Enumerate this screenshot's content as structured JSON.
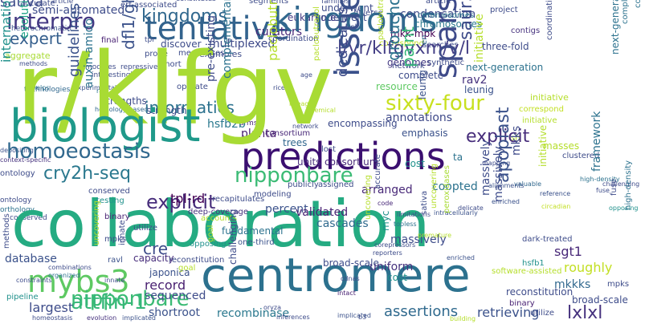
{
  "words": [
    {
      "text": "r/klfgv",
      "color": "#a8db34"
    },
    {
      "text": "collaboration",
      "color": "#25ab82"
    },
    {
      "text": "biologist",
      "color": "#1f998a"
    },
    {
      "text": "centromere",
      "color": "#2c718e"
    },
    {
      "text": "issue",
      "color": "#3b518b"
    },
    {
      "text": "predictions",
      "color": "#3b0f70"
    },
    {
      "text": "kingdoms",
      "color": "#31688e"
    },
    {
      "text": "tentative",
      "color": "#33638d"
    },
    {
      "text": "sparsely",
      "color": "#3e4a89"
    },
    {
      "text": "mybs3",
      "color": "#5ec962"
    },
    {
      "text": "interpro",
      "color": "#443983"
    },
    {
      "text": "homoeostasis",
      "color": "#31688e"
    },
    {
      "text": "nipponbare",
      "color": "#3bbb75"
    },
    {
      "text": "attfin-1",
      "color": "#35b779"
    },
    {
      "text": "sixty-four",
      "color": "#c8e020"
    },
    {
      "text": "cry2h-seq",
      "color": "#2a788e"
    },
    {
      "text": "l/vr/klfgvxm/v/l",
      "color": "#433e85"
    },
    {
      "text": "saur36",
      "color": "#3e4c8a"
    },
    {
      "text": "paint",
      "color": "#35b779"
    },
    {
      "text": "lxlxl",
      "color": "#46327e"
    },
    {
      "text": "apoplast",
      "color": "#3b528b"
    },
    {
      "text": "informatics",
      "color": "#2c728e"
    },
    {
      "text": "explicit",
      "color": "#472d7b"
    },
    {
      "text": "expert",
      "color": "#355f8d"
    },
    {
      "text": "groucho/tup1",
      "color": "#2c728e"
    },
    {
      "text": "dfl1/gh3.6",
      "color": "#3b528b"
    },
    {
      "text": "mkks",
      "color": "#3e4a89"
    },
    {
      "text": "tpl-rd",
      "color": "#440154"
    },
    {
      "text": "shortroot",
      "color": "#3b528b"
    },
    {
      "text": "recombinase",
      "color": "#2a788e"
    },
    {
      "text": "assertions",
      "color": "#306a8e"
    },
    {
      "text": "retrieving",
      "color": "#3b528b"
    },
    {
      "text": "record",
      "color": "#481f70"
    },
    {
      "text": "largest",
      "color": "#3e4c8a"
    },
    {
      "text": "sgt1",
      "color": "#482878"
    },
    {
      "text": "mkk7",
      "color": "#443983"
    },
    {
      "text": "guidelines",
      "color": "#3b528b"
    },
    {
      "text": "dedicates",
      "color": "#3e4c8a"
    },
    {
      "text": "cre",
      "color": "#3e4c8a"
    },
    {
      "text": "database",
      "color": "#3b528b"
    },
    {
      "text": "coopted",
      "color": "#2c728e"
    },
    {
      "text": "roughly",
      "color": "#c2df23"
    },
    {
      "text": "mkkks",
      "color": "#31688e"
    },
    {
      "text": "international",
      "color": "#21918c"
    },
    {
      "text": "evolutionary",
      "color": "#20a386"
    },
    {
      "text": "hsfb2b",
      "color": "#2a788e"
    },
    {
      "text": "framework",
      "color": "#2c728e"
    },
    {
      "text": "ear",
      "color": "#2a788e"
    },
    {
      "text": "en",
      "color": "#31688e"
    },
    {
      "text": "rav2",
      "color": "#46327e"
    },
    {
      "text": "leunig",
      "color": "#3b528b"
    },
    {
      "text": "resource",
      "color": "#5ec962"
    },
    {
      "text": "complete",
      "color": "#3e4c8a"
    },
    {
      "text": "annotations",
      "color": "#3e4989"
    },
    {
      "text": "emphasis",
      "color": "#3b528b"
    },
    {
      "text": "genomes",
      "color": "#443983"
    },
    {
      "text": "condensation",
      "color": "#3e4c8a"
    },
    {
      "text": "chromosomes",
      "color": "#2a788e"
    },
    {
      "text": "mkk-mpk",
      "color": "#440154"
    },
    {
      "text": "eukaryotes",
      "color": "#443983"
    },
    {
      "text": "curators",
      "color": "#482878"
    },
    {
      "text": "multiplexed",
      "color": "#3e4a89"
    },
    {
      "text": "auxin-amido",
      "color": "#2c728e"
    },
    {
      "text": "fundamental",
      "color": "#2c728e"
    },
    {
      "text": "validated",
      "color": "#482173"
    },
    {
      "text": "cascades",
      "color": "#306a8e"
    },
    {
      "text": "percent",
      "color": "#3b528b"
    },
    {
      "text": "capacity",
      "color": "#472d7b"
    },
    {
      "text": "japonica",
      "color": "#3b528b"
    },
    {
      "text": "sequenced",
      "color": "#3e4c8a"
    },
    {
      "text": "broad-scale",
      "color": "#3e4c8a"
    },
    {
      "text": "uniform",
      "color": "#46327e"
    },
    {
      "text": "cost",
      "color": "#21918c"
    },
    {
      "text": "ta",
      "color": "#2c728e"
    },
    {
      "text": "trees",
      "color": "#31688e"
    },
    {
      "text": "units",
      "color": "#472d7b"
    },
    {
      "text": "pre-existing",
      "color": "#3e4a89"
    },
    {
      "text": "consortium",
      "color": "#482878"
    },
    {
      "text": "encompassing",
      "color": "#3e4c8a"
    },
    {
      "text": "arranged",
      "color": "#482878"
    },
    {
      "text": "strengths",
      "color": "#3e4c8a"
    },
    {
      "text": "gained",
      "color": "#472d7b"
    },
    {
      "text": "deep-coverage",
      "color": "#46327e"
    },
    {
      "text": "planta",
      "color": "#481f70"
    },
    {
      "text": "hsfb1",
      "color": "#21918c"
    },
    {
      "text": "dark-treated",
      "color": "#3e4c8a"
    },
    {
      "text": "one-third",
      "color": "#3b528b"
    },
    {
      "text": "reconstitution",
      "color": "#3e4c8a"
    },
    {
      "text": "software-assisted",
      "color": "#b5de2b"
    },
    {
      "text": "massively",
      "color": "#3e4c8a"
    },
    {
      "text": "final",
      "color": "#482173"
    },
    {
      "text": "ssp",
      "color": "#2c728e"
    },
    {
      "text": "sixty",
      "color": "#35b779"
    },
    {
      "text": "ravl",
      "color": "#3b528b"
    },
    {
      "text": "three-fold",
      "color": "#3e4c8a"
    },
    {
      "text": "contigs",
      "color": "#46327e"
    },
    {
      "text": "next-generation",
      "color": "#2c728e"
    },
    {
      "text": "paclobutrazol",
      "color": "#b5de2b"
    },
    {
      "text": "erf-associated",
      "color": "#3e4c8a"
    },
    {
      "text": "semi-automated",
      "color": "#3e4c8a"
    },
    {
      "text": "heterochromatin",
      "color": "#3b528b"
    },
    {
      "text": "aggregate",
      "color": "#a8db34"
    },
    {
      "text": "experimentally",
      "color": "#3b528b"
    },
    {
      "text": "technologies",
      "color": "#31688e"
    },
    {
      "text": "context-specific",
      "color": "#46327e"
    },
    {
      "text": "ontology",
      "color": "#3e4c8a"
    },
    {
      "text": "orthology",
      "color": "#2c728e"
    },
    {
      "text": "conserved",
      "color": "#3e4c8a"
    },
    {
      "text": "testing",
      "color": "#21918c"
    },
    {
      "text": "depositing",
      "color": "#3b528b"
    },
    {
      "text": "combinations",
      "color": "#3e4c8a"
    },
    {
      "text": "organized",
      "color": "#2c728e"
    },
    {
      "text": "pipeline",
      "color": "#21918c"
    },
    {
      "text": "homeostasis",
      "color": "#3e4c8a"
    },
    {
      "text": "evolution",
      "color": "#46327e"
    },
    {
      "text": "implicated",
      "color": "#3b528b"
    },
    {
      "text": "intact",
      "color": "#482173"
    },
    {
      "text": "building",
      "color": "#b5de2b"
    },
    {
      "text": "corepressors",
      "color": "#3e4c8a"
    },
    {
      "text": "reporters",
      "color": "#3e4c8a"
    },
    {
      "text": "premature",
      "color": "#b5de2b"
    },
    {
      "text": "intracellularly",
      "color": "#3b528b"
    },
    {
      "text": "enriched",
      "color": "#3b528b"
    },
    {
      "text": "delicate",
      "color": "#3e4c8a"
    },
    {
      "text": "myc",
      "color": "#21918c"
    },
    {
      "text": "peroxidases",
      "color": "#a8db34"
    },
    {
      "text": "code",
      "color": "#482878"
    },
    {
      "text": "limitations",
      "color": "#3e4c8a"
    },
    {
      "text": "topless",
      "color": "#2c728e"
    },
    {
      "text": "valuable",
      "color": "#31688e"
    },
    {
      "text": "mapping",
      "color": "#3e4c8a"
    },
    {
      "text": "alignments",
      "color": "#3b528b"
    },
    {
      "text": "high-density",
      "color": "#2c728e"
    },
    {
      "text": "reference",
      "color": "#3b528b"
    },
    {
      "text": "fuse",
      "color": "#3e4c8a"
    },
    {
      "text": "circadian",
      "color": "#c2df23"
    },
    {
      "text": "innate",
      "color": "#3e4c8a"
    },
    {
      "text": "utilize",
      "color": "#3e4c8a"
    },
    {
      "text": "mpks",
      "color": "#3e4c8a"
    },
    {
      "text": "binary",
      "color": "#482173"
    },
    {
      "text": "opposing",
      "color": "#21918c"
    },
    {
      "text": "challenging",
      "color": "#3e4c8a"
    },
    {
      "text": "recapitulates",
      "color": "#3e4c8a"
    },
    {
      "text": "accounts",
      "color": "#b5de2b"
    },
    {
      "text": "publicly",
      "color": "#3e4c8a"
    },
    {
      "text": "assigned",
      "color": "#3e4c8a"
    },
    {
      "text": "masses",
      "color": "#b5de2b"
    },
    {
      "text": "modeling",
      "color": "#3e4c8a"
    },
    {
      "text": "lost",
      "color": "#3e4c8a"
    },
    {
      "text": "sh",
      "color": "#b5de2b"
    },
    {
      "text": "homology-based",
      "color": "#31688e"
    },
    {
      "text": "chemical",
      "color": "#b5de2b"
    },
    {
      "text": "lineage",
      "color": "#b5de2b"
    },
    {
      "text": "arms",
      "color": "#482878"
    },
    {
      "text": "helps",
      "color": "#2c728e"
    },
    {
      "text": "rav",
      "color": "#2c728e"
    },
    {
      "text": "probe",
      "color": "#3e4c8a"
    },
    {
      "text": "modules",
      "color": "#3e4c8a"
    },
    {
      "text": "repressive",
      "color": "#3e4c8a"
    },
    {
      "text": "short",
      "color": "#3e4c8a"
    },
    {
      "text": "operate",
      "color": "#3e4c8a"
    },
    {
      "text": "rice",
      "color": "#3e4c8a"
    },
    {
      "text": "megabases",
      "color": "#3e4c8a"
    },
    {
      "text": "discover",
      "color": "#3e4c8a"
    },
    {
      "text": "examples",
      "color": "#3e4c8a"
    },
    {
      "text": "searches",
      "color": "#3e4c8a"
    },
    {
      "text": "project",
      "color": "#3e4c8a"
    },
    {
      "text": "correspond",
      "color": "#c2df23"
    },
    {
      "text": "synthetic",
      "color": "#3e4c8a"
    },
    {
      "text": "network",
      "color": "#3e4c8a"
    },
    {
      "text": "sativa",
      "color": "#3e4c8a"
    },
    {
      "text": "accurate",
      "color": "#3e4c8a"
    },
    {
      "text": "article",
      "color": "#3e4c8a"
    },
    {
      "text": "constitutes",
      "color": "#3e4c8a"
    },
    {
      "text": "segments",
      "color": "#3e4c8a"
    },
    {
      "text": "families",
      "color": "#3e4c8a"
    },
    {
      "text": "age",
      "color": "#3e4c8a"
    },
    {
      "text": "diverse",
      "color": "#3e4c8a"
    },
    {
      "text": "underwent",
      "color": "#3e4c8a"
    },
    {
      "text": "hsl",
      "color": "#3e4c8a"
    },
    {
      "text": "complementary",
      "color": "#2c728e"
    },
    {
      "text": "coordination",
      "color": "#3e4c8a"
    },
    {
      "text": "initiative",
      "color": "#b5de2b"
    },
    {
      "text": "clustered",
      "color": "#3e4c8a"
    },
    {
      "text": "tpr",
      "color": "#3e4c8a"
    },
    {
      "text": "constraints",
      "color": "#3e4c8a"
    },
    {
      "text": "interestingly",
      "color": "#3e4c8a"
    },
    {
      "text": "inferences",
      "color": "#3e4c8a"
    },
    {
      "text": "oryza",
      "color": "#3e4c8a"
    },
    {
      "text": "methods",
      "color": "#3e4c8a"
    },
    {
      "text": "cdnas",
      "color": "#3e4c8a"
    },
    {
      "text": "goal",
      "color": "#b5de2b"
    },
    {
      "text": "uncovering",
      "color": "#b5de2b"
    },
    {
      "text": "b3",
      "color": "#3e4c8a"
    },
    {
      "text": "yields",
      "color": "#3e4c8a"
    },
    {
      "text": "intricate",
      "color": "#3e4c8a"
    },
    {
      "text": "efficiency",
      "color": "#b5de2b"
    },
    {
      "text": "ground",
      "color": "#b5de2b"
    }
  ]
}
